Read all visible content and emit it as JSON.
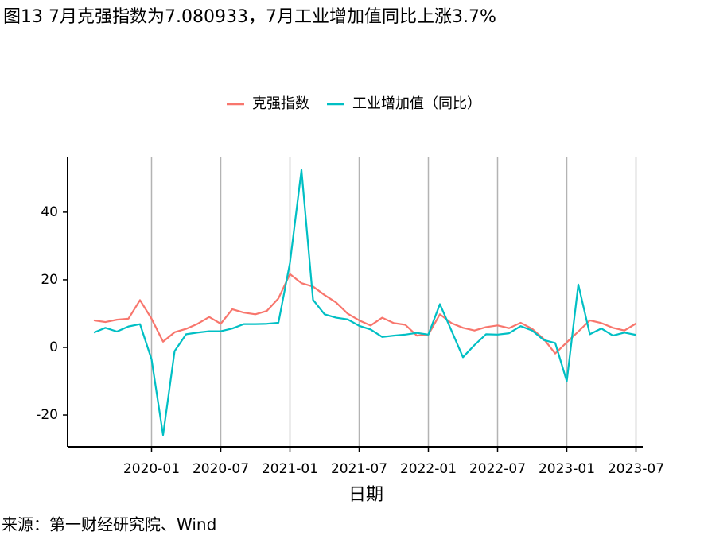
{
  "title": "图13 7月克强指数为7.080933，7月工业增加值同比上涨3.7%",
  "source": "来源：第一财经研究院、Wind",
  "chart_data": {
    "type": "line",
    "x_label": "日期",
    "x": [
      "2019-08",
      "2019-09",
      "2019-10",
      "2019-11",
      "2019-12",
      "2020-01",
      "2020-02",
      "2020-03",
      "2020-04",
      "2020-05",
      "2020-06",
      "2020-07",
      "2020-08",
      "2020-09",
      "2020-10",
      "2020-11",
      "2020-12",
      "2021-01",
      "2021-02",
      "2021-03",
      "2021-04",
      "2021-05",
      "2021-06",
      "2021-07",
      "2021-08",
      "2021-09",
      "2021-10",
      "2021-11",
      "2021-12",
      "2022-01",
      "2022-02",
      "2022-03",
      "2022-04",
      "2022-05",
      "2022-06",
      "2022-07",
      "2022-08",
      "2022-09",
      "2022-10",
      "2022-11",
      "2022-12",
      "2023-01",
      "2023-02",
      "2023-03",
      "2023-04",
      "2023-05",
      "2023-06",
      "2023-07"
    ],
    "xticks": [
      "2020-01",
      "2020-07",
      "2021-01",
      "2021-07",
      "2022-01",
      "2022-07",
      "2023-01",
      "2023-07"
    ],
    "series": [
      {
        "name": "克强指数",
        "color": "#F8766D",
        "values": [
          8.0,
          7.5,
          8.2,
          8.5,
          14.0,
          8.5,
          1.7,
          4.5,
          5.5,
          7.0,
          9.0,
          7.0,
          11.3,
          10.3,
          9.8,
          10.8,
          14.5,
          21.7,
          19.0,
          18.0,
          15.5,
          13.3,
          10.0,
          8.0,
          6.5,
          8.8,
          7.2,
          6.7,
          3.5,
          3.8,
          9.8,
          7.2,
          5.8,
          5.0,
          6.0,
          6.5,
          5.7,
          7.3,
          5.5,
          2.5,
          -1.8,
          1.5,
          4.7,
          8.0,
          7.2,
          5.8,
          5.0,
          7.08
        ]
      },
      {
        "name": "工业增加值（同比）",
        "color": "#00BFC4",
        "values": [
          4.4,
          5.8,
          4.7,
          6.2,
          6.9,
          -3.5,
          -25.9,
          -1.1,
          3.9,
          4.4,
          4.8,
          4.8,
          5.6,
          6.9,
          6.9,
          7.0,
          7.3,
          25.0,
          52.5,
          14.1,
          9.8,
          8.8,
          8.3,
          6.4,
          5.3,
          3.1,
          3.5,
          3.8,
          4.3,
          3.8,
          12.8,
          5.0,
          -2.9,
          0.7,
          3.9,
          3.8,
          4.2,
          6.3,
          5.0,
          2.2,
          1.3,
          -10.0,
          18.6,
          3.9,
          5.6,
          3.5,
          4.4,
          3.7
        ]
      }
    ],
    "ylim": [
      -29.4,
      56.2
    ],
    "yticks": [
      -20,
      0,
      20,
      40
    ],
    "grid": "x",
    "legend": "top"
  }
}
